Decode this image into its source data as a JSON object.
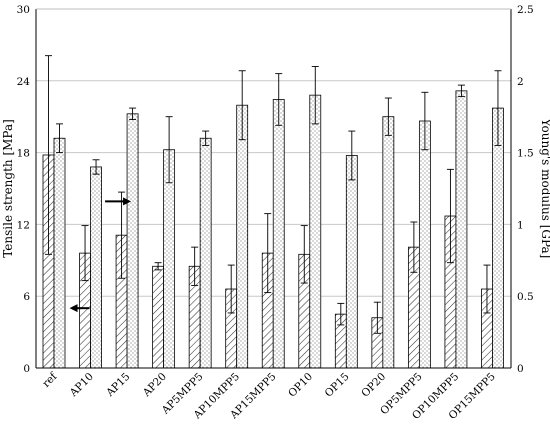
{
  "chart_data": {
    "type": "bar",
    "categories": [
      "ref",
      "AP10",
      "AP15",
      "AP20",
      "AP5MPP5",
      "AP10MPP5",
      "AP15MPP5",
      "OP10",
      "OP15",
      "OP20",
      "OP5MPP5",
      "OP10MPP5",
      "OP15MPP5"
    ],
    "ylabel": "Tensile strength [MPa]",
    "y2label": "Young's modulus [GPa]",
    "ylim": [
      0,
      30
    ],
    "y2lim": [
      0,
      2.5
    ],
    "yticks": [
      "0",
      "6",
      "12",
      "18",
      "24",
      "30"
    ],
    "y2ticks": [
      "0",
      "0.5",
      "1",
      "1.5",
      "2",
      "2.5"
    ],
    "grid": true,
    "series": [
      {
        "axis": "left",
        "pattern": "diagonal-hatch",
        "values": [
          17.8,
          9.6,
          11.1,
          8.5,
          8.5,
          6.6,
          9.6,
          9.5,
          4.5,
          4.2,
          10.1,
          12.7,
          6.6
        ],
        "errors": [
          8.3,
          2.3,
          3.6,
          0.3,
          1.6,
          2.0,
          3.3,
          2.4,
          0.9,
          1.3,
          2.1,
          3.9,
          2.0
        ]
      },
      {
        "axis": "right",
        "pattern": "dotted",
        "values": [
          1.6,
          1.4,
          1.77,
          1.52,
          1.6,
          1.83,
          1.87,
          1.9,
          1.48,
          1.75,
          1.72,
          1.93,
          1.81
        ],
        "errors": [
          0.1,
          0.05,
          0.04,
          0.23,
          0.05,
          0.24,
          0.18,
          0.2,
          0.17,
          0.13,
          0.2,
          0.04,
          0.26
        ]
      }
    ],
    "annotations": [
      {
        "type": "arrow",
        "direction": "left",
        "points_to_axis": "left",
        "category": "AP10",
        "value": 5.0
      },
      {
        "type": "arrow",
        "direction": "right",
        "points_to_axis": "right",
        "category": "AP15",
        "value": 1.16
      }
    ]
  }
}
